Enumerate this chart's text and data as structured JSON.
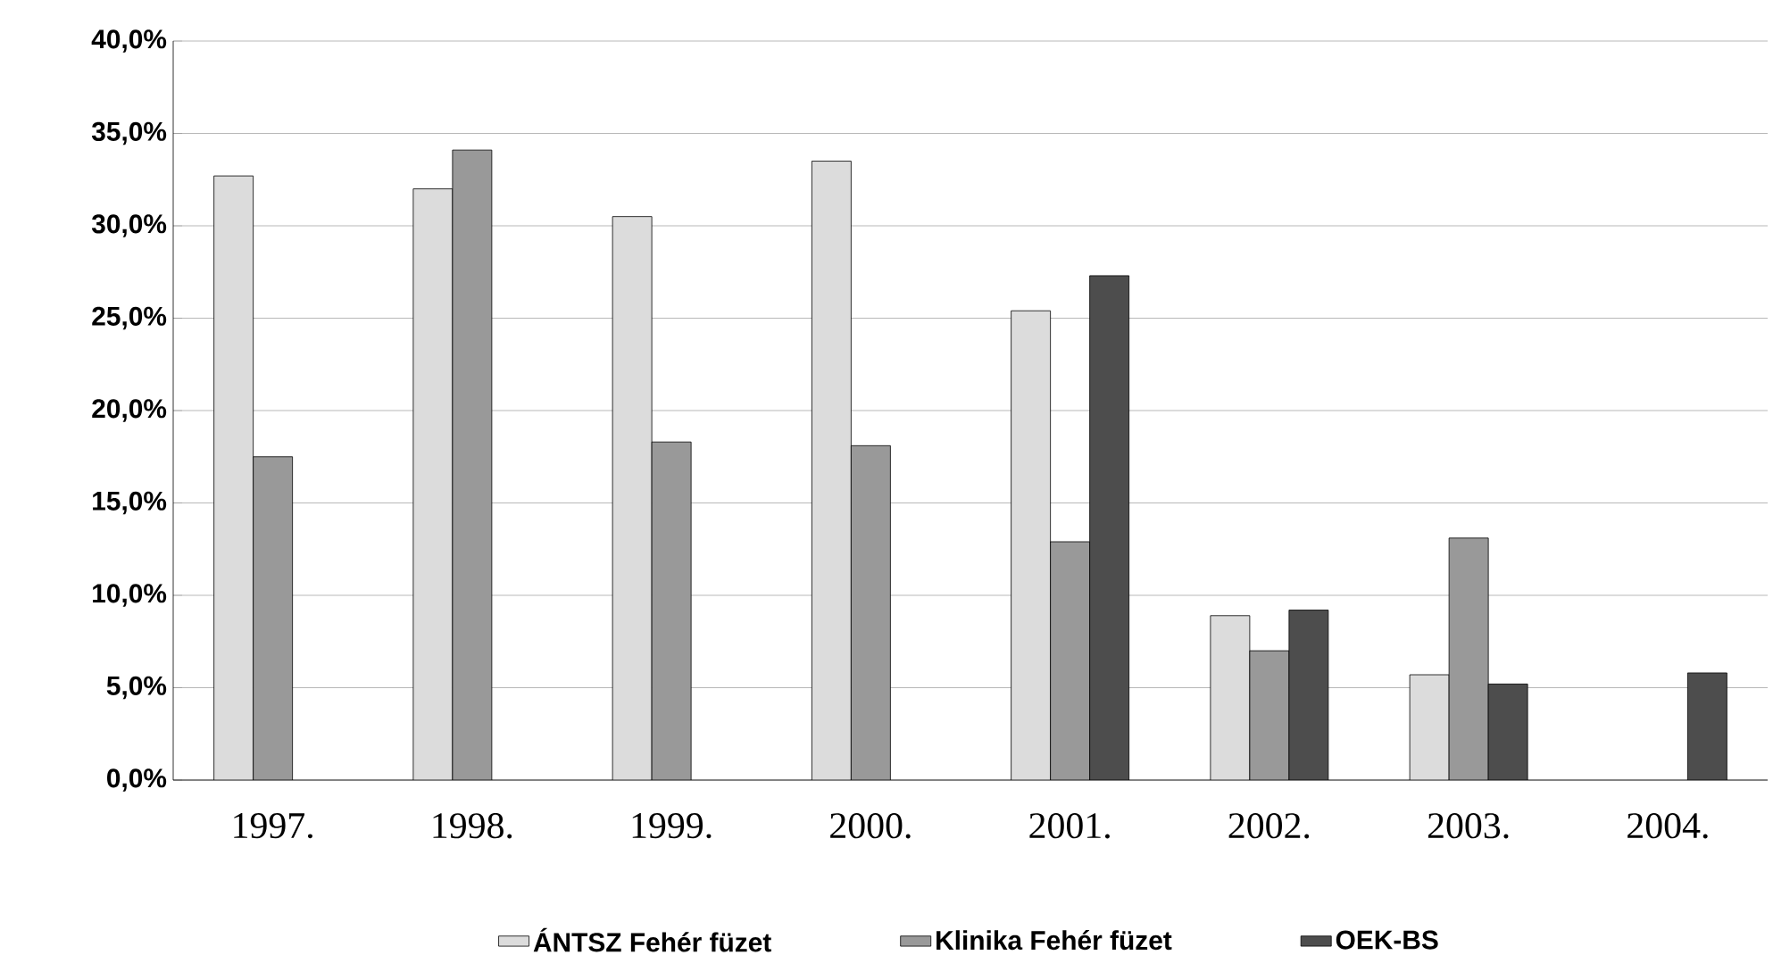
{
  "chart_data": {
    "type": "bar",
    "categories": [
      "1997.",
      "1998.",
      "1999.",
      "2000.",
      "2001.",
      "2002.",
      "2003.",
      "2004."
    ],
    "series": [
      {
        "name": "ÁNTSZ Fehér füzet",
        "color": "#dcdcdc",
        "values": [
          32.7,
          32.0,
          30.5,
          33.5,
          25.4,
          8.9,
          5.7,
          null
        ]
      },
      {
        "name": "Klinika Fehér füzet",
        "color": "#999999",
        "values": [
          17.5,
          34.1,
          18.3,
          18.1,
          12.9,
          7.0,
          13.1,
          null
        ]
      },
      {
        "name": "OEK-BS",
        "color": "#4d4d4d",
        "values": [
          null,
          null,
          null,
          null,
          27.3,
          9.2,
          5.2,
          5.8
        ]
      }
    ],
    "ylim": [
      0,
      40
    ],
    "yticks": [
      {
        "value": 0,
        "label": "0,0%"
      },
      {
        "value": 5,
        "label": "5,0%"
      },
      {
        "value": 10,
        "label": "10,0%"
      },
      {
        "value": 15,
        "label": "15,0%"
      },
      {
        "value": 20,
        "label": "20,0%"
      },
      {
        "value": 25,
        "label": "25,0%"
      },
      {
        "value": 30,
        "label": "30,0%"
      },
      {
        "value": 35,
        "label": "35,0%"
      },
      {
        "value": 40,
        "label": "40,0%"
      }
    ],
    "grid": "y",
    "legend": "bottom"
  }
}
